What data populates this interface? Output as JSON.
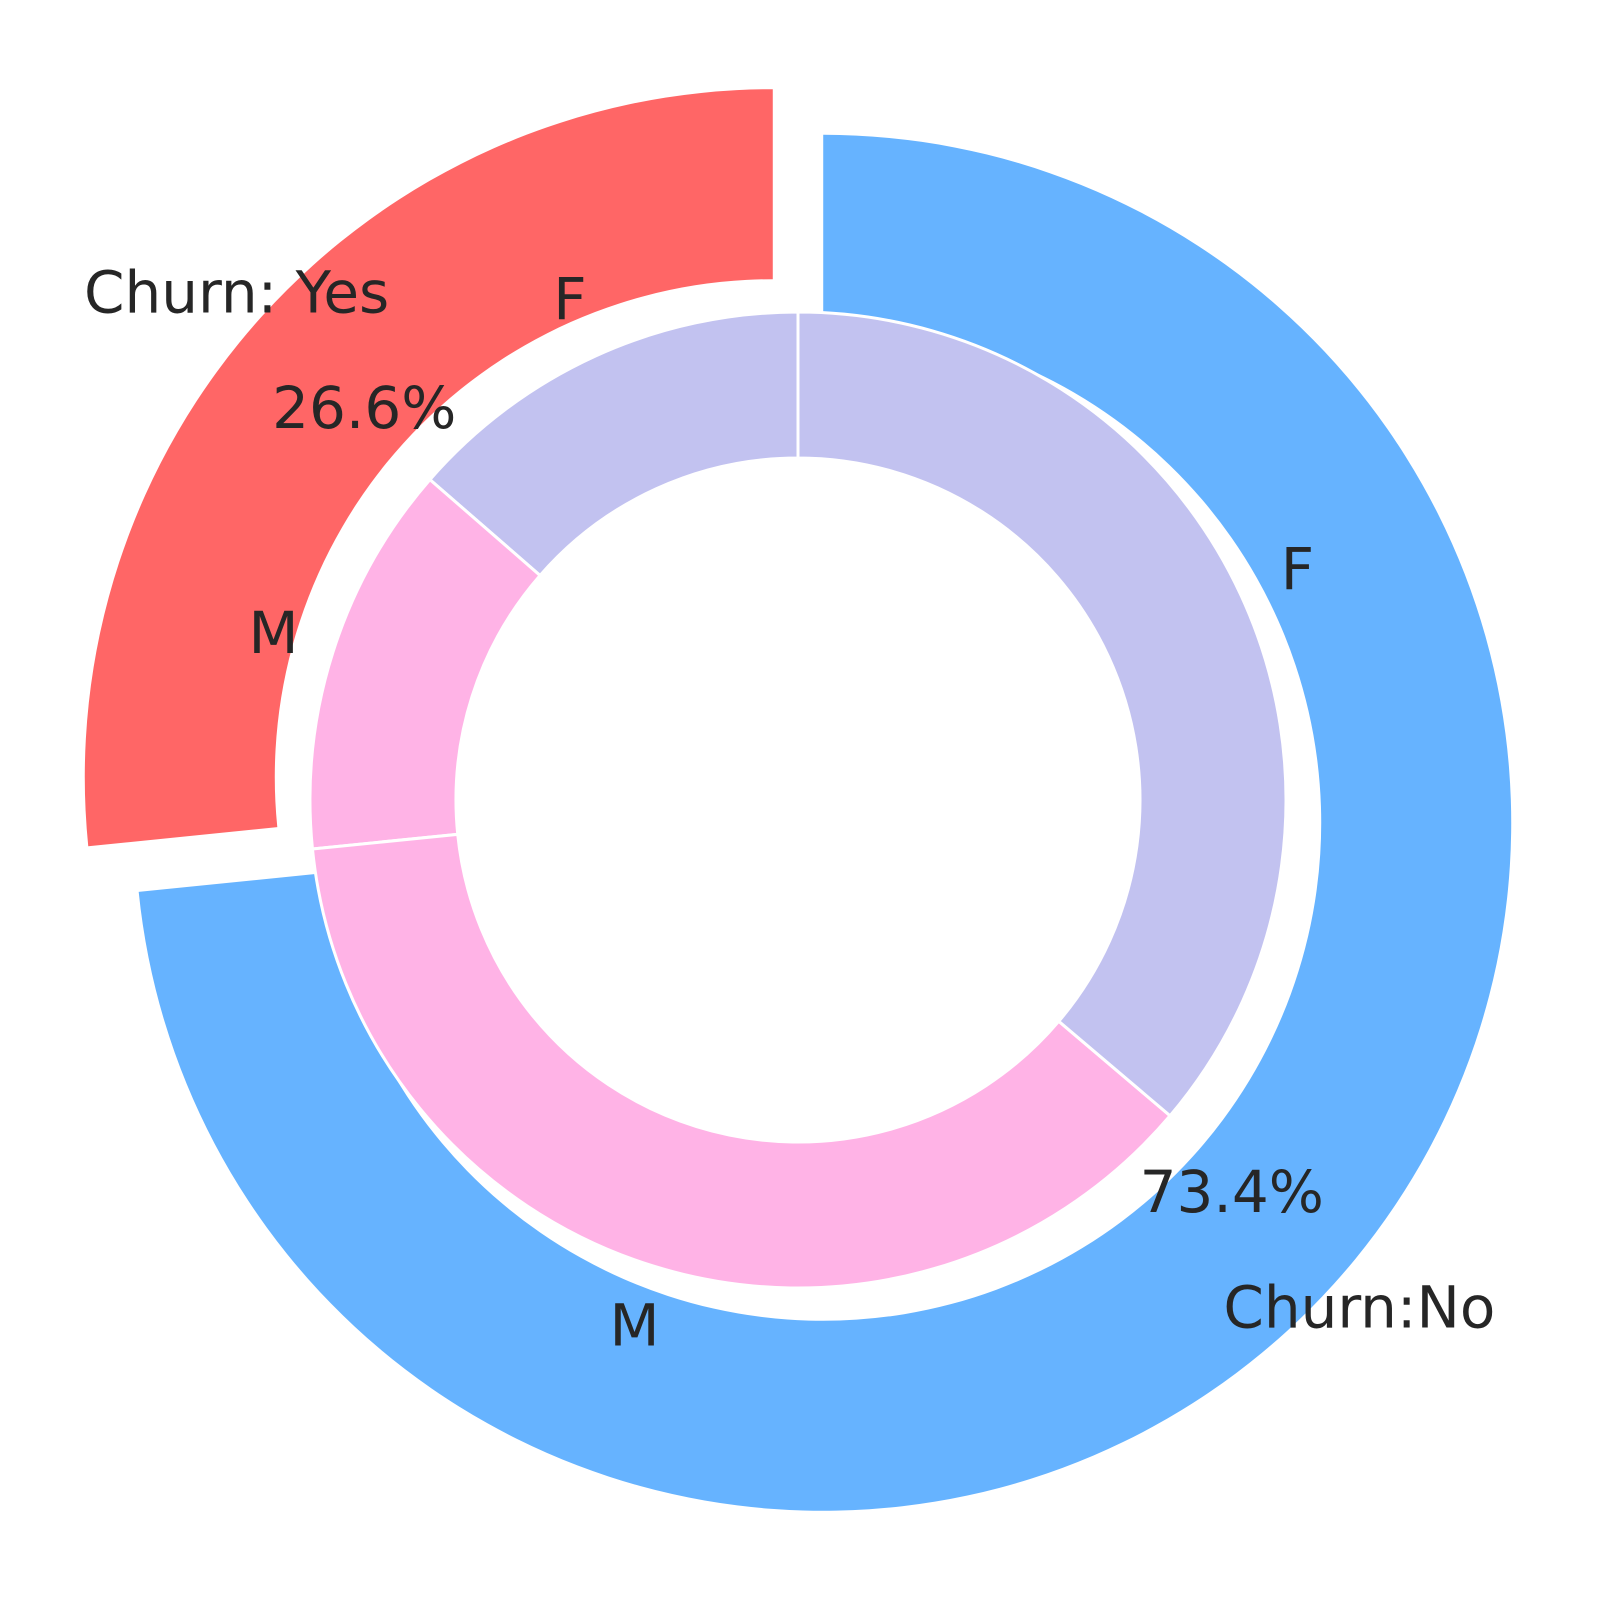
{
  "chart_data": {
    "type": "pie",
    "variant": "nested-donut",
    "title": "",
    "outer_ring": {
      "categories": [
        "Churn: Yes",
        "Churn:No"
      ],
      "values": [
        26.6,
        73.4
      ],
      "percent_labels": [
        "26.6%",
        "73.4%"
      ],
      "colors": [
        "#ff6666",
        "#66b3ff"
      ]
    },
    "inner_ring": {
      "categories": [
        "F",
        "M",
        "M",
        "F"
      ],
      "groups": [
        "Churn: Yes",
        "Churn: Yes",
        "Churn:No",
        "Churn:No"
      ],
      "values": [
        13.6,
        13.0,
        37.2,
        36.2
      ],
      "colors": [
        "#c2c2f0",
        "#ffb3e6",
        "#ffb3e6",
        "#c2c2f0"
      ]
    },
    "start_angle_deg": 90,
    "direction": "counterclockwise",
    "explode_outer": [
      0.05,
      0.05
    ],
    "background": "#ffffff"
  }
}
